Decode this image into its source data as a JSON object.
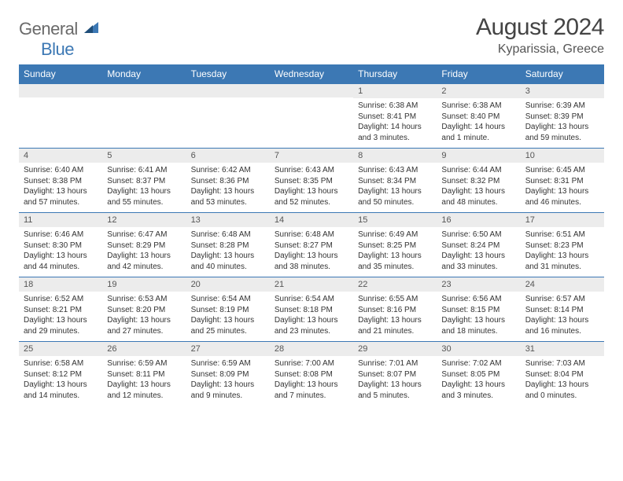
{
  "brand": {
    "name_a": "General",
    "name_b": "Blue"
  },
  "title": "August 2024",
  "location": "Kyparissia, Greece",
  "colors": {
    "header_bg": "#3c78b4",
    "header_text": "#ffffff",
    "daynum_bg": "#ececec",
    "border": "#3c78b4",
    "logo_gray": "#6a6a6a",
    "logo_blue": "#3c78b4"
  },
  "day_names": [
    "Sunday",
    "Monday",
    "Tuesday",
    "Wednesday",
    "Thursday",
    "Friday",
    "Saturday"
  ],
  "weeks": [
    [
      {
        "n": "",
        "sr": "",
        "ss": "",
        "dl": ""
      },
      {
        "n": "",
        "sr": "",
        "ss": "",
        "dl": ""
      },
      {
        "n": "",
        "sr": "",
        "ss": "",
        "dl": ""
      },
      {
        "n": "",
        "sr": "",
        "ss": "",
        "dl": ""
      },
      {
        "n": "1",
        "sr": "Sunrise: 6:38 AM",
        "ss": "Sunset: 8:41 PM",
        "dl": "Daylight: 14 hours and 3 minutes."
      },
      {
        "n": "2",
        "sr": "Sunrise: 6:38 AM",
        "ss": "Sunset: 8:40 PM",
        "dl": "Daylight: 14 hours and 1 minute."
      },
      {
        "n": "3",
        "sr": "Sunrise: 6:39 AM",
        "ss": "Sunset: 8:39 PM",
        "dl": "Daylight: 13 hours and 59 minutes."
      }
    ],
    [
      {
        "n": "4",
        "sr": "Sunrise: 6:40 AM",
        "ss": "Sunset: 8:38 PM",
        "dl": "Daylight: 13 hours and 57 minutes."
      },
      {
        "n": "5",
        "sr": "Sunrise: 6:41 AM",
        "ss": "Sunset: 8:37 PM",
        "dl": "Daylight: 13 hours and 55 minutes."
      },
      {
        "n": "6",
        "sr": "Sunrise: 6:42 AM",
        "ss": "Sunset: 8:36 PM",
        "dl": "Daylight: 13 hours and 53 minutes."
      },
      {
        "n": "7",
        "sr": "Sunrise: 6:43 AM",
        "ss": "Sunset: 8:35 PM",
        "dl": "Daylight: 13 hours and 52 minutes."
      },
      {
        "n": "8",
        "sr": "Sunrise: 6:43 AM",
        "ss": "Sunset: 8:34 PM",
        "dl": "Daylight: 13 hours and 50 minutes."
      },
      {
        "n": "9",
        "sr": "Sunrise: 6:44 AM",
        "ss": "Sunset: 8:32 PM",
        "dl": "Daylight: 13 hours and 48 minutes."
      },
      {
        "n": "10",
        "sr": "Sunrise: 6:45 AM",
        "ss": "Sunset: 8:31 PM",
        "dl": "Daylight: 13 hours and 46 minutes."
      }
    ],
    [
      {
        "n": "11",
        "sr": "Sunrise: 6:46 AM",
        "ss": "Sunset: 8:30 PM",
        "dl": "Daylight: 13 hours and 44 minutes."
      },
      {
        "n": "12",
        "sr": "Sunrise: 6:47 AM",
        "ss": "Sunset: 8:29 PM",
        "dl": "Daylight: 13 hours and 42 minutes."
      },
      {
        "n": "13",
        "sr": "Sunrise: 6:48 AM",
        "ss": "Sunset: 8:28 PM",
        "dl": "Daylight: 13 hours and 40 minutes."
      },
      {
        "n": "14",
        "sr": "Sunrise: 6:48 AM",
        "ss": "Sunset: 8:27 PM",
        "dl": "Daylight: 13 hours and 38 minutes."
      },
      {
        "n": "15",
        "sr": "Sunrise: 6:49 AM",
        "ss": "Sunset: 8:25 PM",
        "dl": "Daylight: 13 hours and 35 minutes."
      },
      {
        "n": "16",
        "sr": "Sunrise: 6:50 AM",
        "ss": "Sunset: 8:24 PM",
        "dl": "Daylight: 13 hours and 33 minutes."
      },
      {
        "n": "17",
        "sr": "Sunrise: 6:51 AM",
        "ss": "Sunset: 8:23 PM",
        "dl": "Daylight: 13 hours and 31 minutes."
      }
    ],
    [
      {
        "n": "18",
        "sr": "Sunrise: 6:52 AM",
        "ss": "Sunset: 8:21 PM",
        "dl": "Daylight: 13 hours and 29 minutes."
      },
      {
        "n": "19",
        "sr": "Sunrise: 6:53 AM",
        "ss": "Sunset: 8:20 PM",
        "dl": "Daylight: 13 hours and 27 minutes."
      },
      {
        "n": "20",
        "sr": "Sunrise: 6:54 AM",
        "ss": "Sunset: 8:19 PM",
        "dl": "Daylight: 13 hours and 25 minutes."
      },
      {
        "n": "21",
        "sr": "Sunrise: 6:54 AM",
        "ss": "Sunset: 8:18 PM",
        "dl": "Daylight: 13 hours and 23 minutes."
      },
      {
        "n": "22",
        "sr": "Sunrise: 6:55 AM",
        "ss": "Sunset: 8:16 PM",
        "dl": "Daylight: 13 hours and 21 minutes."
      },
      {
        "n": "23",
        "sr": "Sunrise: 6:56 AM",
        "ss": "Sunset: 8:15 PM",
        "dl": "Daylight: 13 hours and 18 minutes."
      },
      {
        "n": "24",
        "sr": "Sunrise: 6:57 AM",
        "ss": "Sunset: 8:14 PM",
        "dl": "Daylight: 13 hours and 16 minutes."
      }
    ],
    [
      {
        "n": "25",
        "sr": "Sunrise: 6:58 AM",
        "ss": "Sunset: 8:12 PM",
        "dl": "Daylight: 13 hours and 14 minutes."
      },
      {
        "n": "26",
        "sr": "Sunrise: 6:59 AM",
        "ss": "Sunset: 8:11 PM",
        "dl": "Daylight: 13 hours and 12 minutes."
      },
      {
        "n": "27",
        "sr": "Sunrise: 6:59 AM",
        "ss": "Sunset: 8:09 PM",
        "dl": "Daylight: 13 hours and 9 minutes."
      },
      {
        "n": "28",
        "sr": "Sunrise: 7:00 AM",
        "ss": "Sunset: 8:08 PM",
        "dl": "Daylight: 13 hours and 7 minutes."
      },
      {
        "n": "29",
        "sr": "Sunrise: 7:01 AM",
        "ss": "Sunset: 8:07 PM",
        "dl": "Daylight: 13 hours and 5 minutes."
      },
      {
        "n": "30",
        "sr": "Sunrise: 7:02 AM",
        "ss": "Sunset: 8:05 PM",
        "dl": "Daylight: 13 hours and 3 minutes."
      },
      {
        "n": "31",
        "sr": "Sunrise: 7:03 AM",
        "ss": "Sunset: 8:04 PM",
        "dl": "Daylight: 13 hours and 0 minutes."
      }
    ]
  ]
}
